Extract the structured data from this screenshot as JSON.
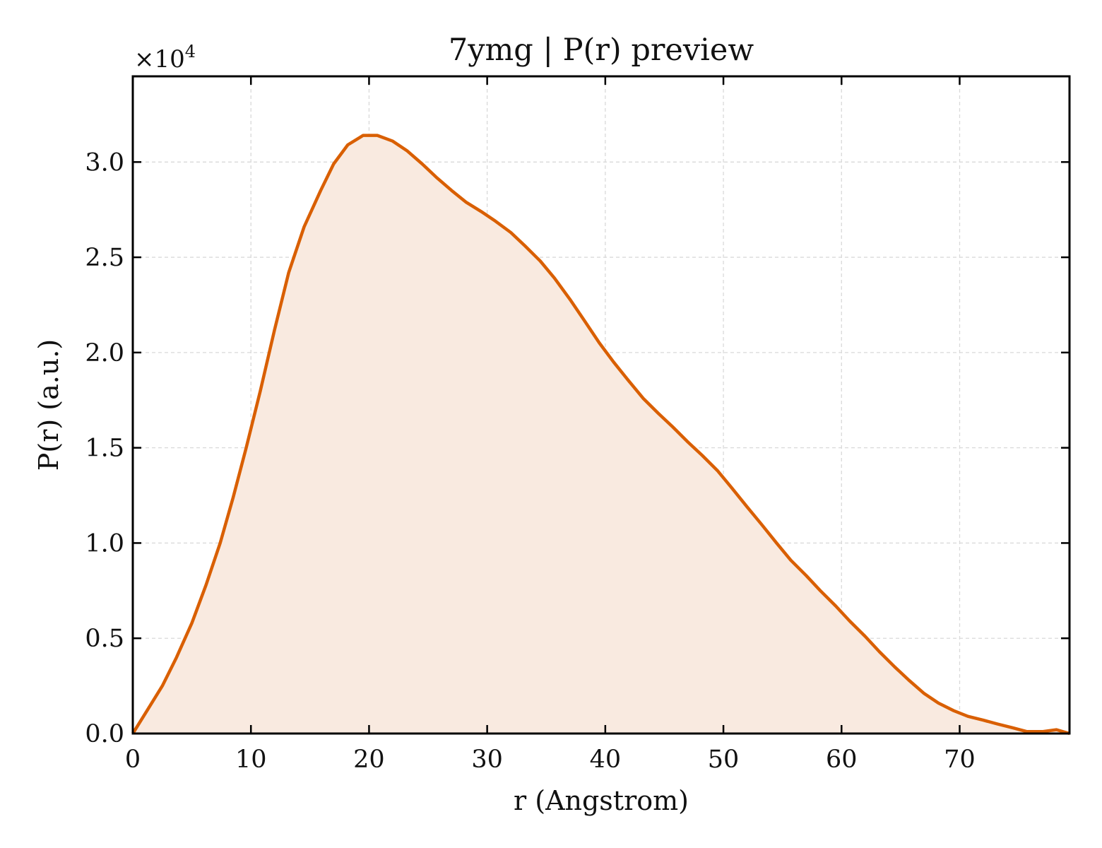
{
  "chart_data": {
    "type": "area",
    "title": "7ymg | P(r) preview",
    "xlabel": "r (Angstrom)",
    "ylabel": "P(r) (a.u.)",
    "y_multiplier_label": "×10",
    "y_multiplier_exponent": "4",
    "xlim": [
      0,
      79.3
    ],
    "ylim": [
      0,
      3.45
    ],
    "xticks": [
      0,
      10,
      20,
      30,
      40,
      50,
      60,
      70
    ],
    "xtick_labels": [
      "0",
      "10",
      "20",
      "30",
      "40",
      "50",
      "60",
      "70"
    ],
    "yticks": [
      0,
      0.5,
      1.0,
      1.5,
      2.0,
      2.5,
      3.0
    ],
    "ytick_labels": [
      "0.0",
      "0.5",
      "1.0",
      "1.5",
      "2.0",
      "2.5",
      "3.0"
    ],
    "grid": true,
    "line_color": "#d95f02",
    "fill_color": "#f9eae0",
    "series": [
      {
        "x": [
          0,
          1.2,
          2.5,
          3.7,
          5.0,
          6.2,
          7.4,
          8.5,
          9.6,
          10.8,
          12.0,
          13.2,
          14.5,
          15.9,
          17.0,
          18.2,
          19.5,
          20.7,
          22.0,
          23.2,
          24.5,
          25.7,
          27.0,
          28.2,
          29.5,
          30.7,
          32.0,
          33.2,
          34.5,
          35.7,
          37.0,
          38.2,
          39.5,
          40.7,
          42.0,
          43.2,
          44.5,
          45.7,
          47.0,
          48.2,
          49.5,
          50.7,
          52.0,
          53.2,
          54.5,
          55.7,
          57.0,
          58.2,
          59.5,
          60.7,
          62.0,
          63.2,
          64.5,
          65.7,
          67.0,
          68.2,
          69.5,
          70.7,
          72.0,
          73.2,
          74.5,
          75.7,
          77.0,
          78.2,
          79.3
        ],
        "y": [
          0.0,
          0.12,
          0.25,
          0.4,
          0.58,
          0.78,
          1.0,
          1.24,
          1.5,
          1.8,
          2.12,
          2.42,
          2.66,
          2.85,
          2.99,
          3.09,
          3.14,
          3.14,
          3.11,
          3.06,
          2.99,
          2.92,
          2.85,
          2.79,
          2.74,
          2.69,
          2.63,
          2.56,
          2.48,
          2.39,
          2.28,
          2.17,
          2.05,
          1.95,
          1.85,
          1.76,
          1.68,
          1.61,
          1.53,
          1.46,
          1.38,
          1.29,
          1.19,
          1.1,
          1.0,
          0.91,
          0.83,
          0.75,
          0.67,
          0.59,
          0.51,
          0.43,
          0.35,
          0.28,
          0.21,
          0.16,
          0.12,
          0.09,
          0.07,
          0.05,
          0.03,
          0.01,
          0.01,
          0.02,
          0.0
        ]
      }
    ]
  }
}
